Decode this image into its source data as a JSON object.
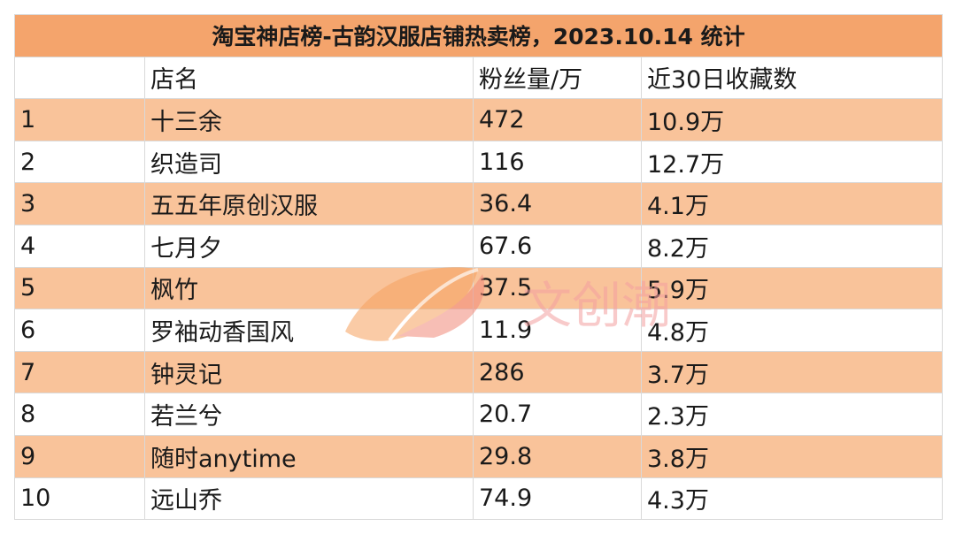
{
  "title": "淘宝神店榜-古韵汉服店铺热卖榜，2023.10.14 统计",
  "headers": [
    "",
    "店名",
    "粉丝量/万",
    "近30日收藏数"
  ],
  "rows": [
    {
      "rank": "1",
      "name": "十三余",
      "fans": "472",
      "favorites": "10.9万"
    },
    {
      "rank": "2",
      "name": "织造司",
      "fans": "116",
      "favorites": "12.7万"
    },
    {
      "rank": "3",
      "name": "五五年原创汉服",
      "fans": "36.4",
      "favorites": "4.1万"
    },
    {
      "rank": "4",
      "name": "七月夕",
      "fans": "67.6",
      "favorites": "8.2万"
    },
    {
      "rank": "5",
      "name": "枫竹",
      "fans": "37.5",
      "favorites": "5.9万"
    },
    {
      "rank": "6",
      "name": "罗袖动香国风",
      "fans": "11.9",
      "favorites": "4.8万"
    },
    {
      "rank": "7",
      "name": "钟灵记",
      "fans": "286",
      "favorites": "3.7万"
    },
    {
      "rank": "8",
      "name": "若兰兮",
      "fans": "20.7",
      "favorites": "2.3万"
    },
    {
      "rank": "9",
      "name": "随时anytime",
      "fans": "29.8",
      "favorites": "3.8万"
    },
    {
      "rank": "10",
      "name": "远山乔",
      "fans": "74.9",
      "favorites": "4.3万"
    }
  ],
  "watermark": {
    "text": "文创潮"
  },
  "colors": {
    "title_bg": "#f4a46c",
    "stripe": "#f9c39a",
    "border": "#d9d9d9"
  }
}
